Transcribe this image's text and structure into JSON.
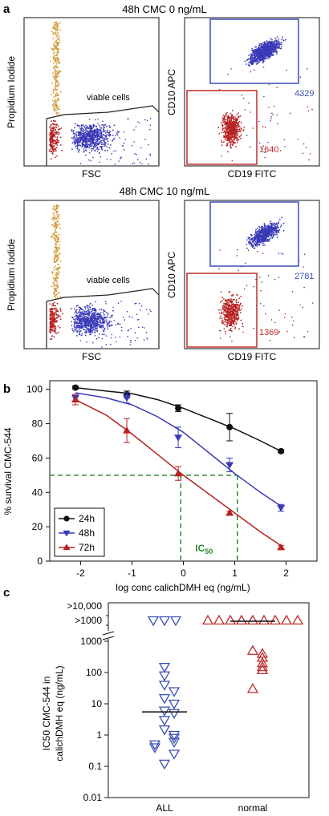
{
  "panel_labels": {
    "a": "a",
    "b": "b",
    "c": "c"
  },
  "colors": {
    "blue": "#3a3ab8",
    "red": "#b82020",
    "orange": "#d39a3a",
    "black": "#111111",
    "green": "#2e8b2e",
    "gate_blue": "#3a4fb5",
    "gate_red": "#c02a2a"
  },
  "panel_a": {
    "rows": [
      {
        "title": "48h CMC 0 ng/mL",
        "scatter": {
          "xlabel": "FSC",
          "ylabel": "Propidium Iodide",
          "gate_label": "viable cells"
        },
        "facs": {
          "xlabel": "CD19 FITC",
          "ylabel": "CD10 APC",
          "count_blue": "4329",
          "count_red": "1640"
        }
      },
      {
        "title": "48h CMC 10 ng/mL",
        "scatter": {
          "xlabel": "FSC",
          "ylabel": "Propidium Iodide",
          "gate_label": "viable cells"
        },
        "facs": {
          "xlabel": "CD19 FITC",
          "ylabel": "CD10 APC",
          "count_blue": "2781",
          "count_red": "1369"
        }
      }
    ]
  },
  "chart_data": [
    {
      "type": "line",
      "panel": "b",
      "xlabel": "log conc calichDMH eq (ng/mL)",
      "ylabel": "% survival CMC-544",
      "xlim": [
        -2.6,
        2.6
      ],
      "ylim": [
        0,
        105
      ],
      "xticks": [
        "-2",
        "-1",
        "0",
        "1",
        "2"
      ],
      "yticks": [
        "0",
        "20",
        "40",
        "60",
        "80",
        "100"
      ],
      "series": [
        {
          "name": "24h",
          "marker": "circle",
          "color": "#111111",
          "x": [
            -2.1,
            -1.1,
            -0.1,
            0.9,
            1.9
          ],
          "y": [
            101,
            97,
            89,
            78,
            64
          ],
          "err": [
            1,
            2,
            2,
            8,
            1
          ],
          "fit": [
            [
              -2.1,
              101
            ],
            [
              -1.5,
              99
            ],
            [
              -1,
              97.5
            ],
            [
              -0.5,
              94
            ],
            [
              0,
              89
            ],
            [
              0.5,
              83
            ],
            [
              1,
              77
            ],
            [
              1.5,
              70
            ],
            [
              1.9,
              64
            ]
          ]
        },
        {
          "name": "48h",
          "marker": "triangle-down",
          "color": "#3a3ab8",
          "x": [
            -2.1,
            -1.1,
            -0.1,
            0.9,
            1.9
          ],
          "y": [
            95,
            95,
            72,
            56,
            31
          ],
          "err": [
            2,
            3,
            6,
            4,
            2
          ],
          "fit": [
            [
              -2.1,
              98
            ],
            [
              -1.5,
              95
            ],
            [
              -1,
              91
            ],
            [
              -0.5,
              84
            ],
            [
              0,
              75
            ],
            [
              0.5,
              63
            ],
            [
              1,
              51
            ],
            [
              1.5,
              40
            ],
            [
              1.9,
              32
            ]
          ]
        },
        {
          "name": "72h",
          "marker": "triangle-up",
          "color": "#b82020",
          "x": [
            -2.1,
            -1.1,
            -0.1,
            0.9,
            1.9
          ],
          "y": [
            94,
            76,
            51,
            28,
            8
          ],
          "err": [
            3,
            7,
            4,
            1,
            1
          ],
          "fit": [
            [
              -2.1,
              94
            ],
            [
              -1.5,
              85
            ],
            [
              -1,
              74
            ],
            [
              -0.5,
              62
            ],
            [
              0,
              50
            ],
            [
              0.5,
              39
            ],
            [
              1,
              28
            ],
            [
              1.5,
              17
            ],
            [
              1.9,
              9
            ]
          ]
        }
      ],
      "reference": {
        "y": 50,
        "x_72h": -0.05,
        "x_48h": 1.05,
        "label": "IC",
        "label_sub": "50"
      }
    },
    {
      "type": "scatter",
      "panel": "c",
      "ylabel_line1": "IC50 CMC-544 in",
      "ylabel_line2": "calichDMH eq (ng/mL)",
      "yscale": "log",
      "ylim": [
        0.01,
        10000
      ],
      "yticks": [
        "0.01",
        "0.1",
        "1",
        "10",
        "100",
        "1000"
      ],
      "ytick_break_labels": [
        ">1000",
        ">10,000"
      ],
      "categories": [
        "ALL",
        "normal"
      ],
      "series": [
        {
          "name": "ALL",
          "color": "#3a4fb5",
          "marker": "triangle-down",
          "median": 5.5,
          "values": [
            ">1000",
            ">1000",
            ">1000",
            150,
            80,
            40,
            25,
            15,
            10,
            6,
            5,
            3,
            1.5,
            1,
            0.8,
            0.6,
            0.5,
            0.4,
            0.25,
            0.12
          ]
        },
        {
          "name": "normal",
          "color": "#c02a2a",
          "marker": "triangle-up",
          "median": 2200,
          "values": [
            ">1000",
            ">1000",
            ">1000",
            ">1000",
            ">1000",
            ">1000",
            ">1000",
            ">1000",
            ">1000",
            500,
            400,
            300,
            200,
            150,
            120,
            30
          ]
        }
      ]
    }
  ]
}
